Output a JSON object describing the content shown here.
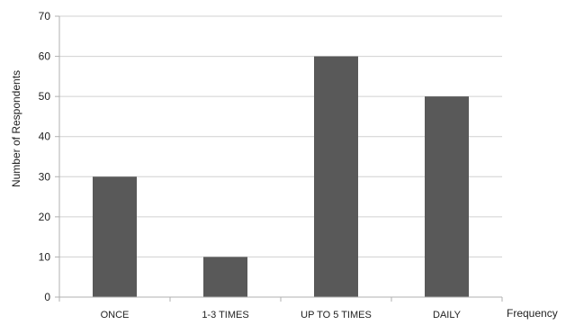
{
  "chart_data": {
    "type": "bar",
    "title": "",
    "xlabel": "Frequency",
    "ylabel": "Number of Respondents",
    "categories": [
      "ONCE",
      "1-3 TIMES",
      "UP TO 5 TIMES",
      "DAILY"
    ],
    "values": [
      30,
      10,
      60,
      50
    ],
    "ylim": [
      0,
      70
    ],
    "yticks": [
      0,
      10,
      20,
      30,
      40,
      50,
      60,
      70
    ],
    "grid": true,
    "legend": "none",
    "bar_color": "#595959",
    "grid_color": "#d0d0d0",
    "axis_color": "#b0b0b0"
  }
}
